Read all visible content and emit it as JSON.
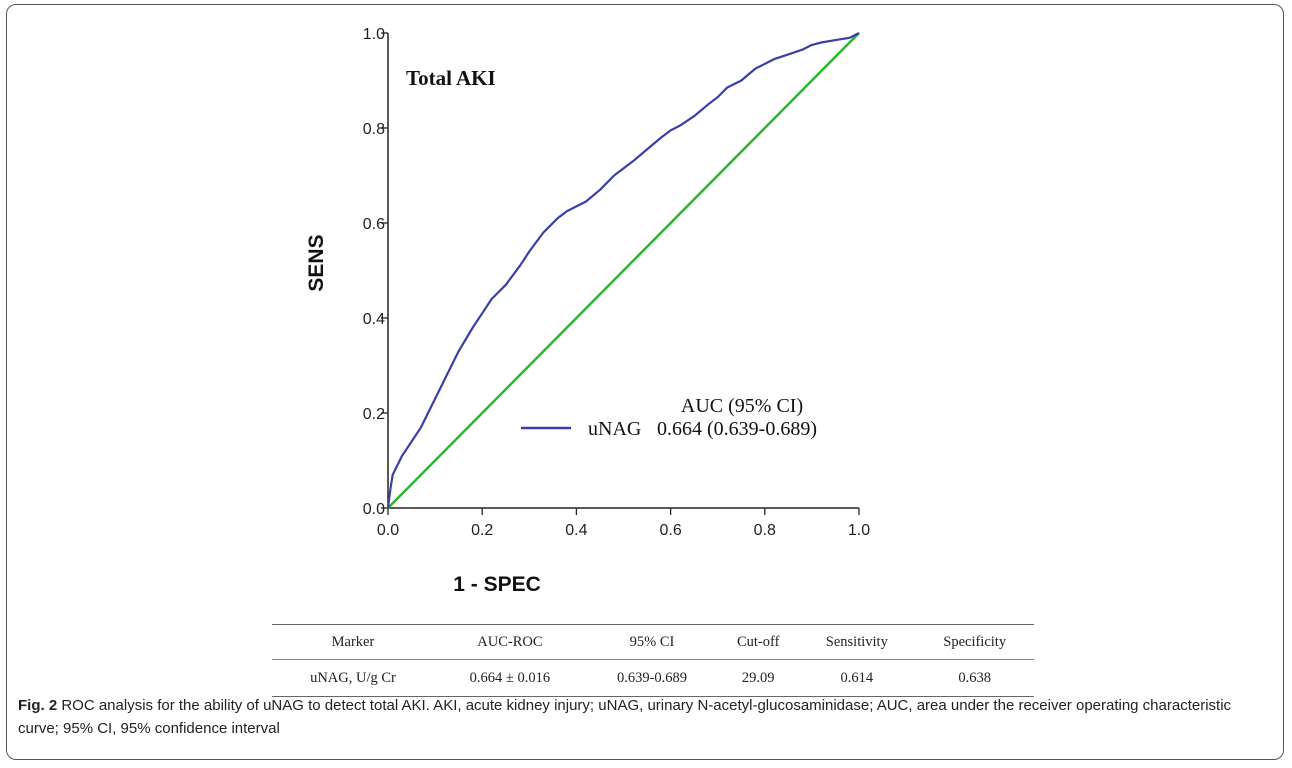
{
  "chart_data": {
    "type": "line",
    "title": "Total AKI",
    "xlabel": "1 - SPEC",
    "ylabel": "SENS",
    "xlim": [
      0,
      1
    ],
    "ylim": [
      0,
      1
    ],
    "x_ticks": [
      "0.0",
      "0.2",
      "0.4",
      "0.6",
      "0.8",
      "1.0"
    ],
    "y_ticks": [
      "0.0",
      "0.2",
      "0.4",
      "0.6",
      "0.8",
      "1.0"
    ],
    "grid": false,
    "legend_header": "AUC (95% CI)",
    "legend_placement": "bottom-right",
    "series": [
      {
        "name": "uNAG",
        "legend_value": "0.664 (0.639-0.689)",
        "color": "#3a3fa8",
        "x": [
          0,
          0.005,
          0.01,
          0.02,
          0.03,
          0.05,
          0.07,
          0.09,
          0.1,
          0.12,
          0.15,
          0.18,
          0.2,
          0.22,
          0.25,
          0.28,
          0.3,
          0.33,
          0.36,
          0.38,
          0.4,
          0.42,
          0.45,
          0.48,
          0.5,
          0.52,
          0.55,
          0.58,
          0.6,
          0.62,
          0.65,
          0.68,
          0.7,
          0.72,
          0.75,
          0.78,
          0.8,
          0.82,
          0.85,
          0.88,
          0.9,
          0.92,
          0.95,
          0.98,
          1.0
        ],
        "y": [
          0,
          0.04,
          0.07,
          0.09,
          0.11,
          0.14,
          0.17,
          0.21,
          0.23,
          0.27,
          0.33,
          0.38,
          0.41,
          0.44,
          0.47,
          0.51,
          0.54,
          0.58,
          0.61,
          0.625,
          0.635,
          0.645,
          0.67,
          0.7,
          0.715,
          0.73,
          0.755,
          0.78,
          0.795,
          0.805,
          0.825,
          0.85,
          0.865,
          0.885,
          0.9,
          0.925,
          0.935,
          0.945,
          0.955,
          0.965,
          0.975,
          0.98,
          0.985,
          0.99,
          1.0
        ]
      },
      {
        "name": "reference",
        "color": "#2db52d",
        "x": [
          0,
          1
        ],
        "y": [
          0,
          1
        ]
      }
    ]
  },
  "table": {
    "headers": [
      "Marker",
      "AUC-ROC",
      "95% CI",
      "Cut-off",
      "Sensitivity",
      "Specificity"
    ],
    "rows": [
      [
        "uNAG, U/g Cr",
        "0.664 ± 0.016",
        "0.639-0.689",
        "29.09",
        "0.614",
        "0.638"
      ]
    ]
  },
  "caption": {
    "label": "Fig. 2",
    "text": " ROC analysis for the ability of uNAG to detect total AKI. AKI, acute kidney injury; uNAG, urinary N-acetyl-glucosaminidase; AUC, area under the receiver operating characteristic curve; 95% CI, 95% confidence interval"
  }
}
